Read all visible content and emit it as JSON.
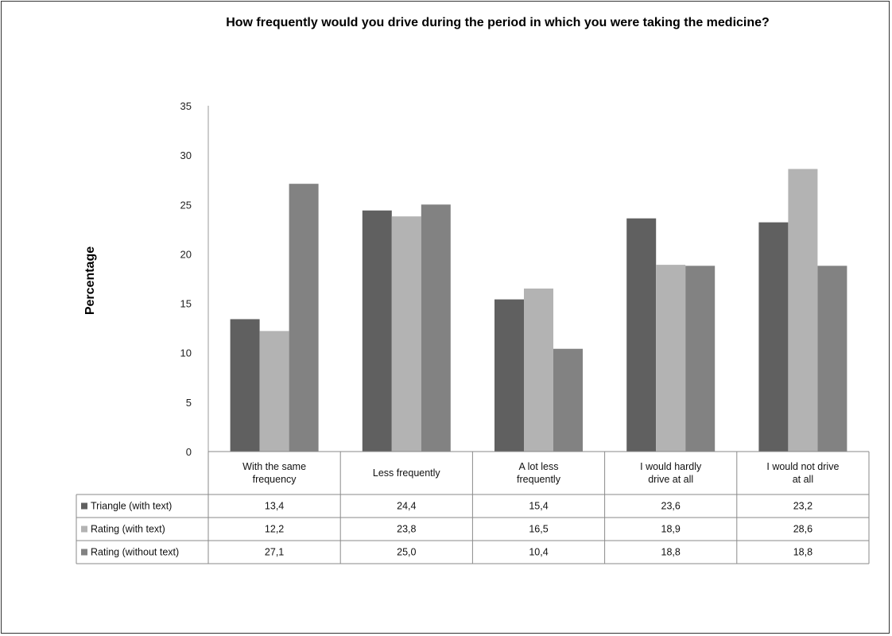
{
  "chart_data": {
    "type": "bar",
    "title": "How frequently would you drive during the period in which you were taking the medicine?",
    "ylabel": "Percentage",
    "xlabel": "",
    "ylim": [
      0,
      35
    ],
    "yticks": [
      0,
      5,
      10,
      15,
      20,
      25,
      30,
      35
    ],
    "grid": false,
    "legend": "data-table-bottom",
    "categories": [
      [
        "With the same",
        "frequency"
      ],
      [
        "Less frequently"
      ],
      [
        "A lot less",
        "frequently"
      ],
      [
        "I would hardly",
        "drive at all"
      ],
      [
        "I would not drive",
        "at all"
      ]
    ],
    "series": [
      {
        "name": "Triangle (with text)",
        "color": "#606060",
        "values": [
          13.4,
          24.4,
          15.4,
          23.6,
          23.2
        ],
        "labels": [
          "13,4",
          "24,4",
          "15,4",
          "23,6",
          "23,2"
        ]
      },
      {
        "name": "Rating (with text)",
        "color": "#b3b3b3",
        "values": [
          12.2,
          23.8,
          16.5,
          18.9,
          28.6
        ],
        "labels": [
          "12,2",
          "23,8",
          "16,5",
          "18,9",
          "28,6"
        ]
      },
      {
        "name": "Rating (without text)",
        "color": "#828282",
        "values": [
          27.1,
          25.0,
          10.4,
          18.8,
          18.8
        ],
        "labels": [
          "27,1",
          "25,0",
          "10,4",
          "18,8",
          "18,8"
        ]
      }
    ]
  }
}
